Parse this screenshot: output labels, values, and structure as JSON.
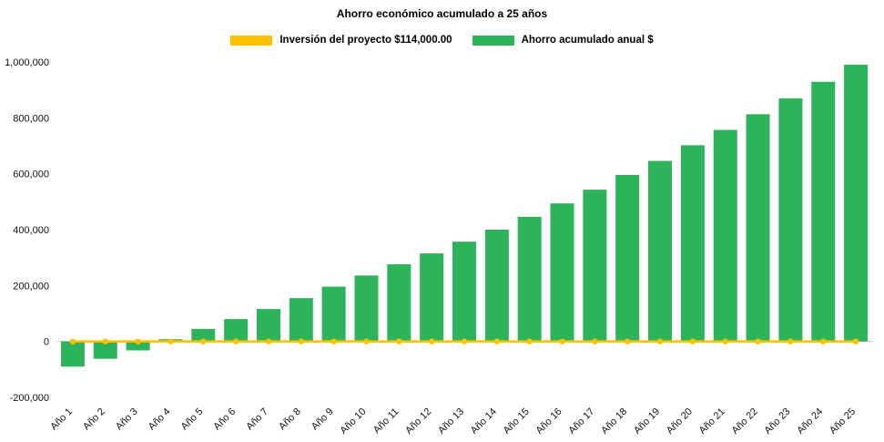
{
  "chart_data": {
    "type": "bar",
    "title": "Ahorro económico acumulado a 25 años",
    "categories": [
      "Año 1",
      "Año 2",
      "Año 3",
      "Año 4",
      "Año 5",
      "Año 6",
      "Año 7",
      "Año 8",
      "Año 9",
      "Año 10",
      "Año 11",
      "Año 12",
      "Año 13",
      "Año 14",
      "Año 15",
      "Año 16",
      "Año 17",
      "Año 18",
      "Año 19",
      "Año 20",
      "Año 21",
      "Año 22",
      "Año 23",
      "Año 24",
      "Año 25"
    ],
    "series": [
      {
        "name": "Ahorro acumulado anual $",
        "type": "bar",
        "color": "#2db45a",
        "values": [
          -90000,
          -62000,
          -32000,
          8000,
          45000,
          80000,
          116000,
          155000,
          196000,
          236000,
          276000,
          315000,
          357000,
          400000,
          446000,
          494000,
          543000,
          596000,
          646000,
          702000,
          757000,
          813000,
          870000,
          929000,
          990000
        ]
      },
      {
        "name": "Inversión del proyecto $114,000.00",
        "type": "line",
        "color": "#ffc000",
        "values": [
          0,
          0,
          0,
          0,
          0,
          0,
          0,
          0,
          0,
          0,
          0,
          0,
          0,
          0,
          0,
          0,
          0,
          0,
          0,
          0,
          0,
          0,
          0,
          0,
          0
        ]
      }
    ],
    "ylim": [
      -200000,
      1000000
    ],
    "ytick_interval": 200000,
    "ytick_labels": [
      "-200,000",
      "0",
      "200,000",
      "400,000",
      "600,000",
      "800,000",
      "1,000,000"
    ],
    "grid": false,
    "legend_position": "top"
  }
}
